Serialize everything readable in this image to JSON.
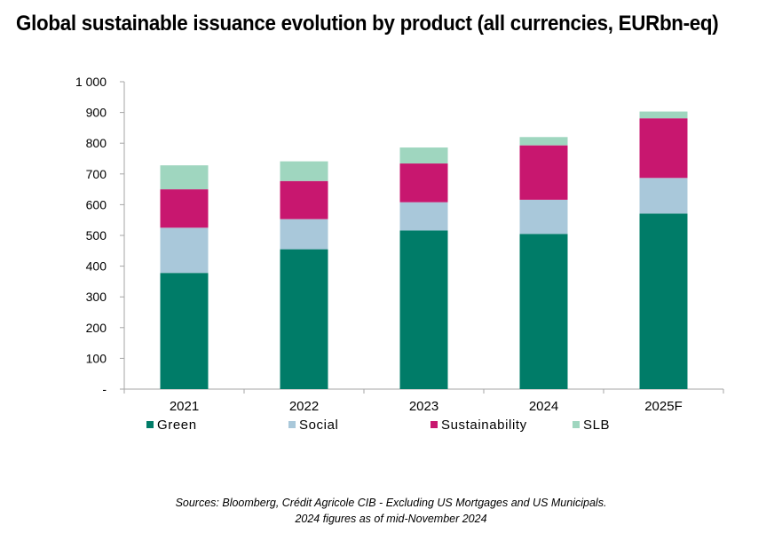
{
  "title": "Global sustainable issuance evolution by product (all currencies, EURbn-eq)",
  "source_line1": "Sources: Bloomberg, Crédit Agricole CIB - Excluding US Mortgages and US Municipals.",
  "source_line2": "2024 figures as of mid-November 2024",
  "chart_data": {
    "type": "bar",
    "stacked": true,
    "title": "Global sustainable issuance evolution by product (all currencies, EURbn-eq)",
    "categories": [
      "2021",
      "2022",
      "2023",
      "2024",
      "2025F"
    ],
    "series": [
      {
        "name": "Green",
        "color": "#007c68",
        "values": [
          378,
          455,
          516,
          505,
          571
        ]
      },
      {
        "name": "Social",
        "color": "#a9c8da",
        "values": [
          147,
          98,
          92,
          111,
          116
        ]
      },
      {
        "name": "Sustainability",
        "color": "#c8176f",
        "values": [
          125,
          124,
          126,
          177,
          194
        ]
      },
      {
        "name": "SLB",
        "color": "#9fd6bf",
        "values": [
          78,
          64,
          52,
          27,
          22
        ]
      }
    ],
    "ylim": [
      0,
      1000
    ],
    "yticks": [
      0,
      100,
      200,
      300,
      400,
      500,
      600,
      700,
      800,
      900,
      1000
    ],
    "ytick_labels": [
      "-",
      "100",
      "200",
      "300",
      "400",
      "500",
      "600",
      "700",
      "800",
      "900",
      "1 000"
    ],
    "xlabel": "",
    "ylabel": "",
    "grid": false,
    "legend_position": "bottom"
  }
}
